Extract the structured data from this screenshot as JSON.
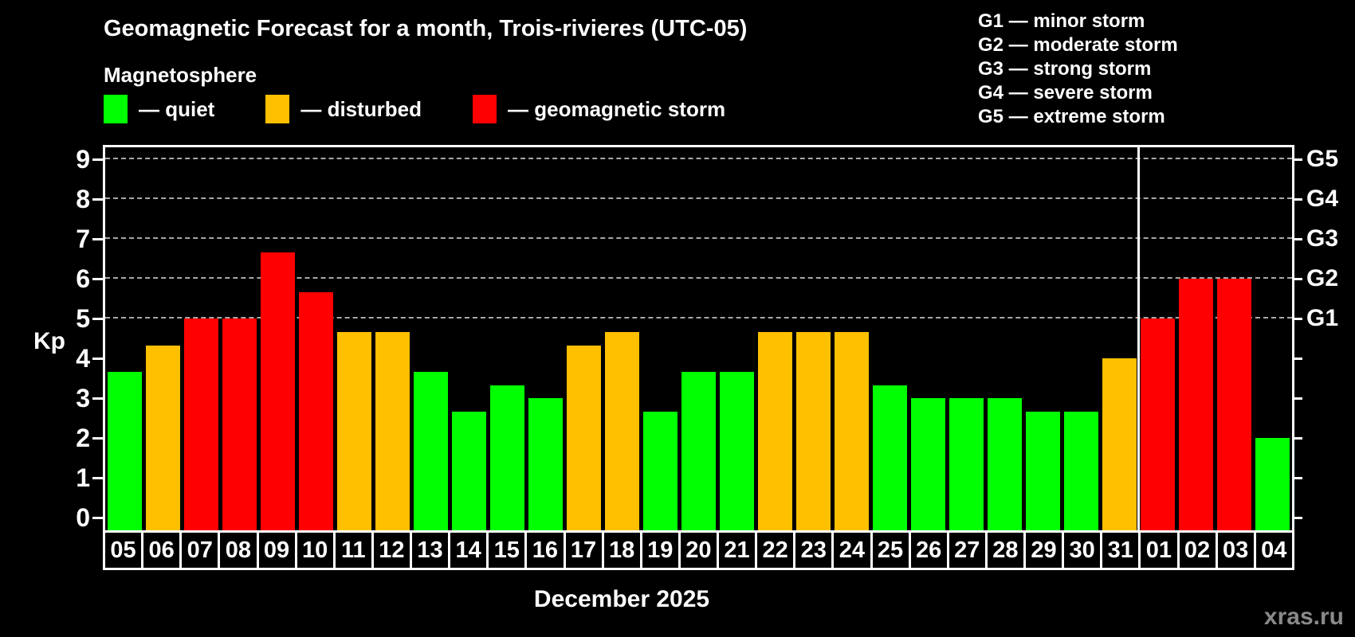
{
  "header": {
    "title": "Geomagnetic Forecast for a month, Trois-rivieres (UTC-05)",
    "subtitle": "Magnetosphere"
  },
  "legend": [
    {
      "status": "quiet",
      "label": "— quiet"
    },
    {
      "status": "disturbed",
      "label": "— disturbed"
    },
    {
      "status": "storm",
      "label": "— geomagnetic storm"
    }
  ],
  "g_legend": [
    "G1 — minor storm",
    "G2 — moderate storm",
    "G3 — strong storm",
    "G4 — severe storm",
    "G5 — extreme storm"
  ],
  "watermark": "xras.ru",
  "chart_data": {
    "type": "bar",
    "title": "Geomagnetic Forecast for a month, Trois-rivieres (UTC-05)",
    "xlabel": "December 2025",
    "ylabel": "Kp",
    "ylim": [
      0,
      9
    ],
    "yticks": [
      0,
      1,
      2,
      3,
      4,
      5,
      6,
      7,
      8,
      9
    ],
    "gridline_levels": [
      5,
      6,
      7,
      8,
      9
    ],
    "grid": "horizontal dashed at G-storm levels only",
    "legend_position": "top-left",
    "right_axis_labels": [
      {
        "kp": 5,
        "label": "G1"
      },
      {
        "kp": 6,
        "label": "G2"
      },
      {
        "kp": 7,
        "label": "G3"
      },
      {
        "kp": 8,
        "label": "G4"
      },
      {
        "kp": 9,
        "label": "G5"
      }
    ],
    "categories": [
      "05",
      "06",
      "07",
      "08",
      "09",
      "10",
      "11",
      "12",
      "13",
      "14",
      "15",
      "16",
      "17",
      "18",
      "19",
      "20",
      "21",
      "22",
      "23",
      "24",
      "25",
      "26",
      "27",
      "28",
      "29",
      "30",
      "31",
      "01",
      "02",
      "03",
      "04"
    ],
    "values": [
      3.67,
      4.33,
      5.0,
      5.0,
      6.67,
      5.67,
      4.67,
      4.67,
      3.67,
      2.67,
      3.33,
      3.0,
      4.33,
      4.67,
      2.67,
      3.67,
      3.67,
      4.67,
      4.67,
      4.67,
      3.33,
      3.0,
      3.0,
      3.0,
      2.67,
      2.67,
      4.0,
      5.0,
      6.0,
      6.0,
      2.0
    ],
    "statuses": [
      "quiet",
      "disturbed",
      "storm",
      "storm",
      "storm",
      "storm",
      "disturbed",
      "disturbed",
      "quiet",
      "quiet",
      "quiet",
      "quiet",
      "disturbed",
      "disturbed",
      "quiet",
      "quiet",
      "quiet",
      "disturbed",
      "disturbed",
      "disturbed",
      "quiet",
      "quiet",
      "quiet",
      "quiet",
      "quiet",
      "quiet",
      "disturbed",
      "storm",
      "storm",
      "storm",
      "quiet"
    ],
    "month_separator_after_index": 26,
    "colors": {
      "quiet": "#00ff00",
      "disturbed": "#ffc000",
      "storm": "#ff0000"
    }
  }
}
